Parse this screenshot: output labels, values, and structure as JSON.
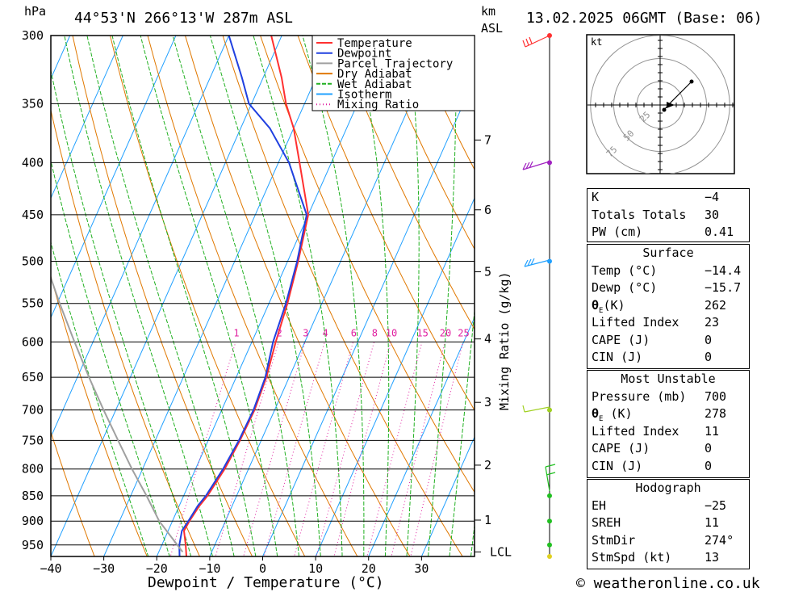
{
  "header": {
    "location": "44°53'N  266°13'W  287m  ASL",
    "datetime": "13.02.2025  06GMT  (Base: 06)",
    "hpa_label": "hPa",
    "km_label": "km",
    "asl_label": "ASL"
  },
  "chart_data": {
    "type": "line",
    "title": "",
    "xlabel": "Dewpoint / Temperature (°C)",
    "ylabel": "hPa",
    "xticks": [
      -40,
      -30,
      -20,
      -10,
      0,
      10,
      20,
      30
    ],
    "xlim": [
      -40,
      40
    ],
    "pressure_levels": [
      300,
      350,
      400,
      450,
      500,
      550,
      600,
      650,
      700,
      750,
      800,
      850,
      900,
      950
    ],
    "ylim": [
      300,
      975
    ],
    "skew_degC_per_ln_p": 37.0,
    "mixing_ratio_labels": [
      "1",
      "2",
      "3",
      "4",
      "6",
      "8",
      "10",
      "15",
      "20",
      "25"
    ],
    "mixing_ratio_values": [
      1,
      2,
      3,
      4,
      6,
      8,
      10,
      15,
      20,
      25
    ],
    "mixing_ratio_axis_label": "Mixing Ratio (g/kg)",
    "km_ticks": [
      {
        "label": "7",
        "p": 380
      },
      {
        "label": "6",
        "p": 445
      },
      {
        "label": "5",
        "p": 512
      },
      {
        "label": "4",
        "p": 596
      },
      {
        "label": "3",
        "p": 688
      },
      {
        "label": "2",
        "p": 793
      },
      {
        "label": "1",
        "p": 898
      },
      {
        "label": "LCL",
        "p": 965
      }
    ],
    "legend_position": "top-right",
    "series": [
      {
        "name": "Temperature",
        "color": "#ff3030",
        "p": [
          975,
          950,
          920,
          900,
          870,
          850,
          800,
          750,
          700,
          650,
          600,
          550,
          500,
          450,
          400,
          370,
          350,
          330,
          300
        ],
        "t": [
          -14.4,
          -15.5,
          -17.0,
          -16.8,
          -16.2,
          -15.5,
          -14.5,
          -14.0,
          -13.8,
          -14.3,
          -15.5,
          -16.5,
          -18.0,
          -20.0,
          -26.0,
          -30.0,
          -33.5,
          -36.5,
          -42.0
        ]
      },
      {
        "name": "Dewpoint",
        "color": "#2040e0",
        "p": [
          975,
          950,
          920,
          900,
          870,
          850,
          800,
          750,
          700,
          650,
          600,
          550,
          500,
          450,
          400,
          370,
          350,
          330,
          300
        ],
        "t": [
          -15.7,
          -16.7,
          -17.4,
          -17.0,
          -16.5,
          -15.8,
          -14.8,
          -14.2,
          -14.0,
          -14.5,
          -16.0,
          -16.8,
          -18.2,
          -20.3,
          -28.0,
          -34.5,
          -40.5,
          -44.0,
          -50.0
        ]
      },
      {
        "name": "Parcel Trajectory",
        "color": "#a0a0a0",
        "p": [
          965,
          900,
          850,
          800,
          750,
          700,
          650,
          600,
          550,
          500,
          450
        ],
        "t": [
          -15.5,
          -22.5,
          -27.0,
          -32.0,
          -37.0,
          -42.3,
          -47.8,
          -53.5,
          -59.5,
          -65.8,
          -72.5
        ]
      },
      {
        "name": "Dry Adiabat",
        "color": "#e07800"
      },
      {
        "name": "Wet Adiabat",
        "color": "#20b020"
      },
      {
        "name": "Isotherm",
        "color": "#20a0ff"
      },
      {
        "name": "Mixing Ratio",
        "color": "#e020a0"
      }
    ]
  },
  "wind_profile": {
    "km_labels": [
      "7",
      "6",
      "5",
      "4",
      "3",
      "2",
      "1",
      "LCL"
    ]
  },
  "hodograph": {
    "unit_label": "kt",
    "ring_labels": [
      "25",
      "50",
      "75"
    ]
  },
  "indices": {
    "basic": [
      {
        "label": "K",
        "value": "-4"
      },
      {
        "label": "Totals Totals",
        "value": "30"
      },
      {
        "label": "PW (cm)",
        "value": "0.41"
      }
    ],
    "surface_title": "Surface",
    "surface": [
      {
        "label": "Temp (°C)",
        "value": "-14.4"
      },
      {
        "label": "Dewp (°C)",
        "value": "-15.7"
      },
      {
        "label": "θE(K)",
        "value": "262"
      },
      {
        "label": "Lifted Index",
        "value": "23"
      },
      {
        "label": "CAPE (J)",
        "value": "0"
      },
      {
        "label": "CIN (J)",
        "value": "0"
      }
    ],
    "unstable_title": "Most Unstable",
    "unstable": [
      {
        "label": "Pressure (mb)",
        "value": "700"
      },
      {
        "label": "θE (K)",
        "value": "278"
      },
      {
        "label": "Lifted Index",
        "value": "11"
      },
      {
        "label": "CAPE (J)",
        "value": "0"
      },
      {
        "label": "CIN (J)",
        "value": "0"
      }
    ],
    "hodo_title": "Hodograph",
    "hodo": [
      {
        "label": "EH",
        "value": "-25"
      },
      {
        "label": "SREH",
        "value": "11"
      },
      {
        "label": "StmDir",
        "value": "274°"
      },
      {
        "label": "StmSpd (kt)",
        "value": "13"
      }
    ]
  },
  "footer": {
    "copyright": "© weatheronline.co.uk"
  }
}
